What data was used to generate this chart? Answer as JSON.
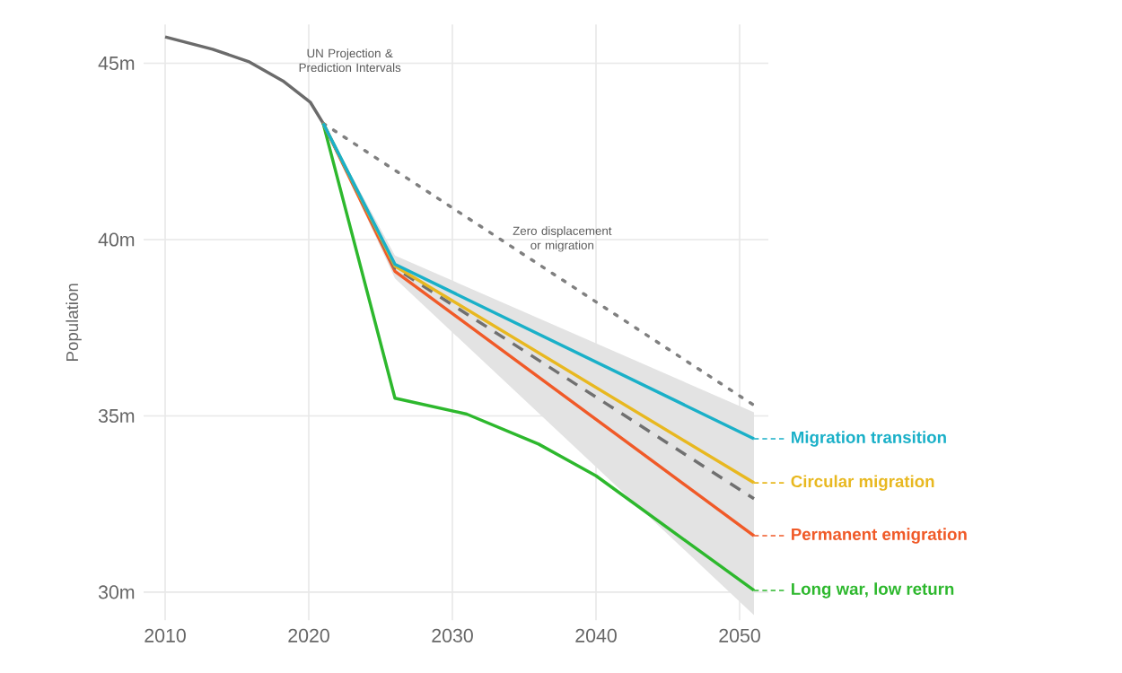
{
  "chart_data": {
    "type": "line",
    "ylabel": "Population",
    "xlim": [
      2008.5,
      2052
    ],
    "ylim": [
      29.2,
      46.1
    ],
    "xticks": [
      2010,
      2020,
      2030,
      2040,
      2050
    ],
    "yticks": [
      {
        "value": 30,
        "label": "30m"
      },
      {
        "value": 35,
        "label": "35m"
      },
      {
        "value": 40,
        "label": "40m"
      },
      {
        "value": 45,
        "label": "45m"
      }
    ],
    "grid": true,
    "legend": "right",
    "annotations": [
      "UN Projection & Prediction Intervals",
      "Zero displacement or migration"
    ],
    "series": [
      {
        "color": "#6b6b6b",
        "x": [
          2010,
          2013.3,
          2015.8,
          2018.2,
          2020.1,
          2021
        ],
        "values": [
          45.75,
          45.4,
          45.05,
          44.5,
          43.9,
          43.3
        ]
      },
      {
        "color": "#808080",
        "line_style": "dotted",
        "x": [
          2021,
          2051
        ],
        "values": [
          43.3,
          35.3
        ]
      },
      {
        "color": "#2db82d",
        "name": "Long war, low return",
        "x": [
          2021,
          2026,
          2031,
          2036,
          2040,
          2051
        ],
        "values": [
          43.3,
          35.5,
          35.05,
          34.2,
          33.3,
          30.05
        ]
      },
      {
        "color": "#f05a28",
        "name": "Permanent emigration",
        "x": [
          2021,
          2026,
          2051
        ],
        "values": [
          43.3,
          39.1,
          31.6
        ]
      },
      {
        "color": "#707070",
        "line_style": "dashed",
        "x": [
          2021,
          2026,
          2051
        ],
        "values": [
          43.3,
          39.2,
          32.65
        ],
        "lower": [
          43.3,
          38.9,
          29.35
        ],
        "upper": [
          43.3,
          39.55,
          35.1
        ]
      },
      {
        "color": "#e8b820",
        "name": "Circular migration",
        "x": [
          2021,
          2026,
          2051
        ],
        "values": [
          43.3,
          39.25,
          33.1
        ]
      },
      {
        "color": "#1ab0c8",
        "name": "Migration transition",
        "x": [
          2021,
          2026,
          2051
        ],
        "values": [
          43.3,
          39.3,
          34.35
        ]
      }
    ]
  }
}
